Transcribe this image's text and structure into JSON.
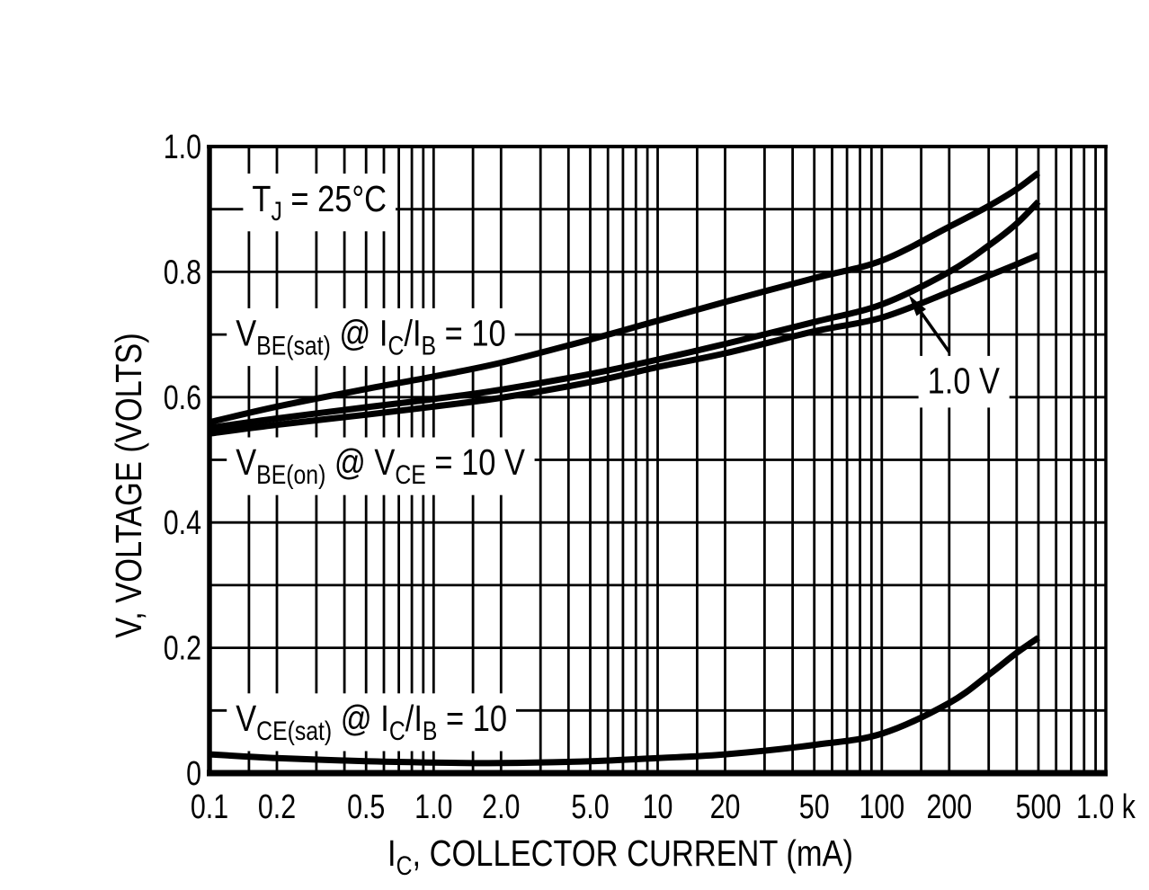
{
  "figure": {
    "background": "#ffffff",
    "ink": "#000000",
    "description": "Transistor ON voltages versus collector current, TJ = 25 C"
  },
  "chart_data": {
    "type": "line",
    "title": "",
    "x_scale": "log",
    "xlabel": "IC, COLLECTOR CURRENT (mA)",
    "xlabel_segments": [
      {
        "t": "I"
      },
      {
        "t": "C",
        "sub": true
      },
      {
        "t": ", COLLECTOR CURRENT (mA)"
      }
    ],
    "ylabel": "V, VOLTAGE (VOLTS)",
    "xlim": [
      0.1,
      1000
    ],
    "ylim": [
      0,
      1.0
    ],
    "grid": true,
    "y_grid_step": 0.1,
    "x_minor_per_decade": [
      1.5,
      2,
      3,
      4,
      5,
      6,
      7,
      8,
      9
    ],
    "x_tick_labels": [
      {
        "v": 0.1,
        "label": "0.1"
      },
      {
        "v": 0.2,
        "label": "0.2"
      },
      {
        "v": 0.5,
        "label": "0.5"
      },
      {
        "v": 1.0,
        "label": "1.0"
      },
      {
        "v": 2.0,
        "label": "2.0"
      },
      {
        "v": 5.0,
        "label": "5.0"
      },
      {
        "v": 10,
        "label": "10"
      },
      {
        "v": 20,
        "label": "20"
      },
      {
        "v": 50,
        "label": "50"
      },
      {
        "v": 100,
        "label": "100"
      },
      {
        "v": 200,
        "label": "200"
      },
      {
        "v": 500,
        "label": "500"
      },
      {
        "v": 1000,
        "label": "1.0 k"
      }
    ],
    "y_tick_labels": [
      {
        "v": 1.0,
        "label": "1.0"
      },
      {
        "v": 0.8,
        "label": "0.8"
      },
      {
        "v": 0.6,
        "label": "0.6"
      },
      {
        "v": 0.4,
        "label": "0.4"
      },
      {
        "v": 0.2,
        "label": "0.2"
      },
      {
        "v": 0.0,
        "label": "0"
      }
    ],
    "series": [
      {
        "key": "vbe-sat",
        "name": "VBE(sat) @ IC/IB = 10",
        "x": [
          0.1,
          0.2,
          0.5,
          1,
          2,
          5,
          10,
          20,
          50,
          100,
          200,
          300,
          400,
          500
        ],
        "y": [
          0.56,
          0.585,
          0.613,
          0.633,
          0.655,
          0.692,
          0.722,
          0.752,
          0.79,
          0.818,
          0.872,
          0.905,
          0.932,
          0.958
        ]
      },
      {
        "key": "vbe-on-1v",
        "name": "VBE(on) @ VCE = 1.0 V",
        "x": [
          0.1,
          0.2,
          0.5,
          1,
          2,
          5,
          10,
          20,
          50,
          100,
          200,
          300,
          400,
          500
        ],
        "y": [
          0.551,
          0.566,
          0.584,
          0.597,
          0.612,
          0.637,
          0.66,
          0.685,
          0.72,
          0.748,
          0.8,
          0.842,
          0.877,
          0.912
        ]
      },
      {
        "key": "vbe-on-10v",
        "name": "VBE(on) @ VCE = 10 V",
        "x": [
          0.1,
          0.2,
          0.5,
          1,
          2,
          5,
          10,
          20,
          50,
          100,
          200,
          300,
          400,
          500
        ],
        "y": [
          0.542,
          0.556,
          0.572,
          0.585,
          0.599,
          0.624,
          0.648,
          0.67,
          0.705,
          0.727,
          0.768,
          0.794,
          0.812,
          0.827
        ]
      },
      {
        "key": "vce-sat",
        "name": "VCE(sat) @ IC/IB = 10",
        "x": [
          0.1,
          0.2,
          0.5,
          1,
          2,
          5,
          10,
          20,
          50,
          100,
          200,
          300,
          400,
          500
        ],
        "y": [
          0.03,
          0.024,
          0.019,
          0.017,
          0.016,
          0.019,
          0.024,
          0.03,
          0.045,
          0.063,
          0.112,
          0.157,
          0.192,
          0.216
        ]
      }
    ],
    "annotations": [
      {
        "name": "junction-temp-note",
        "x_mA": 0.155,
        "y_V_baseline": 0.897,
        "segments": [
          {
            "t": "T"
          },
          {
            "t": "J",
            "sub": true
          },
          {
            "t": " = 25°C"
          }
        ]
      },
      {
        "name": "vbe-sat-curve-label",
        "x_mA": 0.131,
        "y_V_baseline": 0.682,
        "segments": [
          {
            "t": "V"
          },
          {
            "t": "BE(sat)",
            "sub": true
          },
          {
            "t": " @ I"
          },
          {
            "t": "C",
            "sub": true
          },
          {
            "t": "/I"
          },
          {
            "t": "B",
            "sub": true
          },
          {
            "t": " = 10"
          }
        ]
      },
      {
        "name": "vbe-on-curve-label",
        "x_mA": 0.131,
        "y_V_baseline": 0.476,
        "segments": [
          {
            "t": "V"
          },
          {
            "t": "BE(on)",
            "sub": true
          },
          {
            "t": " @ V"
          },
          {
            "t": "CE",
            "sub": true
          },
          {
            "t": " = 10 V"
          }
        ]
      },
      {
        "name": "vce-1v-callout-label",
        "x_mA": 160,
        "y_V_baseline": 0.606,
        "segments": [
          {
            "t": "1.0 V"
          }
        ]
      },
      {
        "name": "vce-sat-curve-label",
        "x_mA": 0.131,
        "y_V_baseline": 0.0675,
        "segments": [
          {
            "t": "V"
          },
          {
            "t": "CE(sat)",
            "sub": true
          },
          {
            "t": " @ I"
          },
          {
            "t": "C",
            "sub": true
          },
          {
            "t": "/I"
          },
          {
            "t": "B",
            "sub": true
          },
          {
            "t": " = 10"
          }
        ]
      }
    ],
    "arrow": {
      "label_ref": "1.0 V",
      "from_x_mA": 200,
      "from_y_V": 0.672,
      "to_x_mA": 132,
      "to_y_V": 0.763
    }
  }
}
